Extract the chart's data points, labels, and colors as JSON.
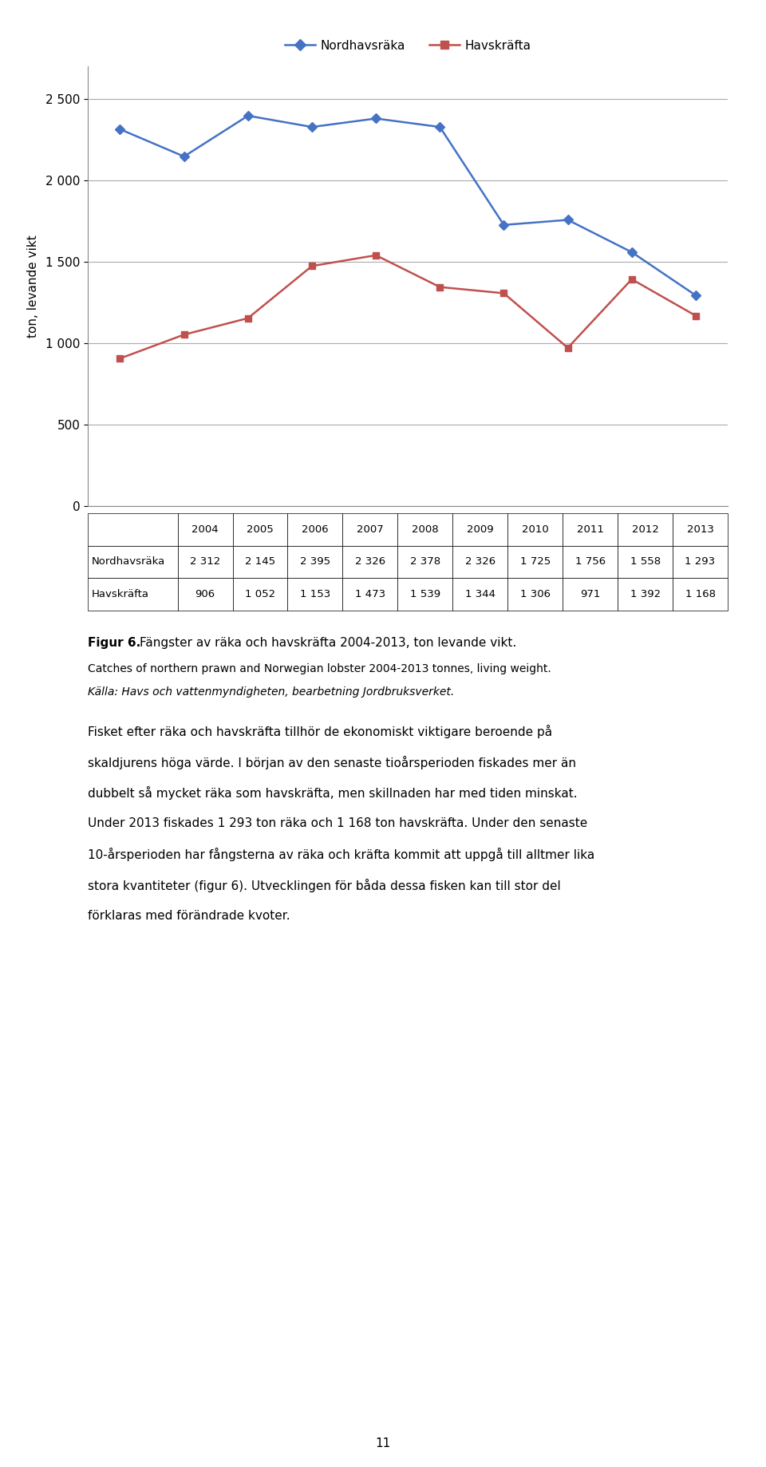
{
  "years": [
    2004,
    2005,
    2006,
    2007,
    2008,
    2009,
    2010,
    2011,
    2012,
    2013
  ],
  "nordhavsraka": [
    2312,
    2145,
    2395,
    2326,
    2378,
    2326,
    1725,
    1756,
    1558,
    1293
  ],
  "havskrafta": [
    906,
    1052,
    1153,
    1473,
    1539,
    1344,
    1306,
    971,
    1392,
    1168
  ],
  "line1_color": "#4472C4",
  "line2_color": "#C0504D",
  "line1_label": "Nordhavsräka",
  "line2_label": "Havskräfta",
  "ylabel": "ton, levande vikt",
  "ylim": [
    0,
    2700
  ],
  "yticks": [
    0,
    500,
    1000,
    1500,
    2000,
    2500
  ],
  "ytick_labels": [
    "0",
    "500",
    "1 000",
    "1 500",
    "2 000",
    "2 500"
  ],
  "grid_color": "#AAAAAA",
  "background_color": "#FFFFFF",
  "table_row1_label": "Nordhavsräka",
  "table_row2_label": "Havskräfta",
  "table_row1_values": [
    "2 312",
    "2 145",
    "2 395",
    "2 326",
    "2 378",
    "2 326",
    "1 725",
    "1 756",
    "1 558",
    "1 293"
  ],
  "table_row2_values": [
    "906",
    "1 052",
    "1 153",
    "1 473",
    "1 539",
    "1 344",
    "1 306",
    "971",
    "1 392",
    "1 168"
  ],
  "year_labels": [
    "2004",
    "2005",
    "2006",
    "2007",
    "2008",
    "2009",
    "2010",
    "2011",
    "2012",
    "2013"
  ],
  "caption_bold": "Figur 6.",
  "caption_text": "  Fängster av räka och havskräfta 2004-2013, ton levande vikt.",
  "caption_eng": "Catches of northern prawn and Norwegian lobster 2004-2013 tonnes, living weight.",
  "caption_source": "Källa: Havs och vattenmyndigheten, bearbetning Jordbruksverket.",
  "body_text_line1": "Fisket efter räka och havskräfta tillhör de ekonomiskt viktigare beroende på",
  "body_text_line2": "skaldjurens höga värde. I början av den senaste tioårsperioden fiskades mer än",
  "body_text_line3": "dubbelt så mycket räka som havskräfta, men skillnaden har med tiden minskat.",
  "body_text_line4": "Under 2013 fiskades 1 293 ton räka och 1 168 ton havskräfta. Under den senaste",
  "body_text_line5": "10-årsperioden har fångsterna av räka och kräfta kommit att uppgå till alltmer lika",
  "body_text_line6": "stora kvantiteter (figur 6). Utvecklingen för båda dessa fisken kan till stor del",
  "body_text_line7": "förklaras med förändrade kvoter.",
  "page_number": "11"
}
